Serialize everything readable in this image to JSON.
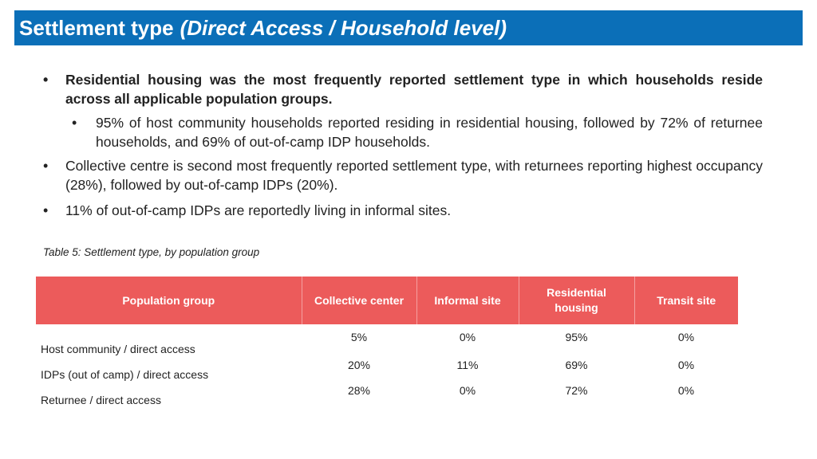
{
  "header": {
    "title": "Settlement type",
    "subtitle": "(Direct Access / Household level)"
  },
  "bullets": [
    "Residential housing was the most frequently reported settlement type in which households reside across all applicable population groups.",
    "95% of host community households reported residing in residential housing, followed by 72% of returnee households, and 69% of out-of-camp IDP households.",
    "Collective centre is second most frequently reported settlement type, with returnees reporting highest occupancy (28%), followed by out-of-camp IDPs (20%).",
    "11% of out-of-camp IDPs are reportedly living in informal sites."
  ],
  "caption": "Table 5: Settlement type, by population group",
  "table": {
    "headers": [
      "Population group",
      "Collective center",
      "Informal site",
      "Residential housing",
      "Transit site"
    ],
    "rows": [
      {
        "label": "Host community / direct access",
        "values": [
          "5%",
          "0%",
          "95%",
          "0%"
        ]
      },
      {
        "label": "IDPs (out of camp) / direct access",
        "values": [
          "20%",
          "11%",
          "69%",
          "0%"
        ]
      },
      {
        "label": "Returnee / direct access",
        "values": [
          "28%",
          "0%",
          "72%",
          "0%"
        ]
      }
    ]
  },
  "colors": {
    "title_bar": "#0b6fb8",
    "table_header": "#ec5b5b"
  }
}
